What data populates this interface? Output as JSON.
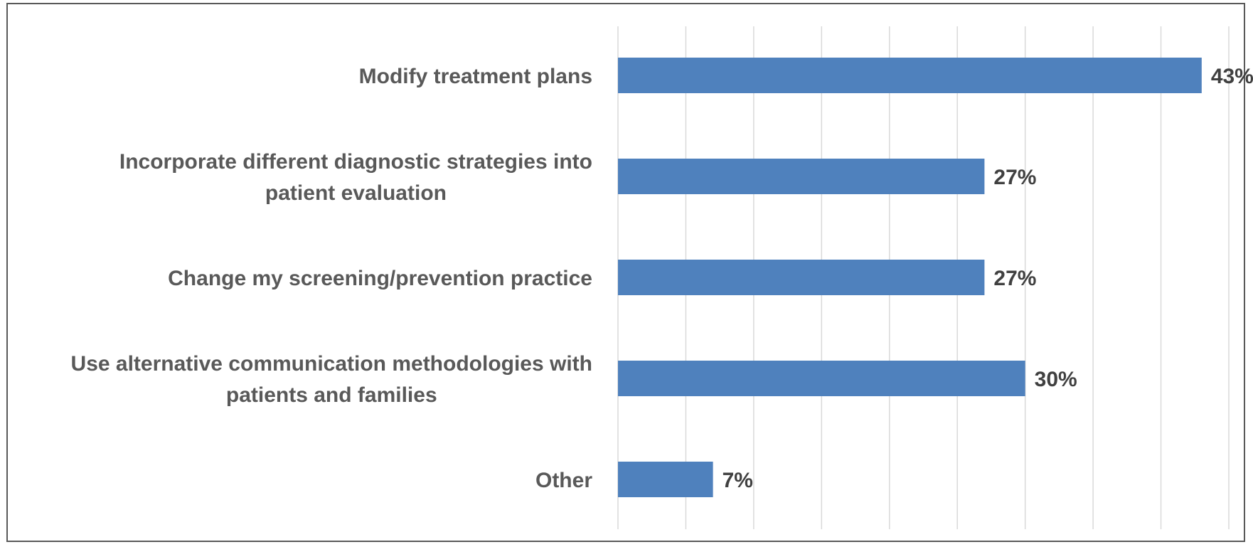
{
  "chart_data": {
    "type": "bar",
    "orientation": "horizontal",
    "categories": [
      "Modify treatment plans",
      "Incorporate different diagnostic strategies into patient evaluation",
      "Change my screening/prevention practice",
      "Use alternative communication methodologies with patients and families",
      "Other"
    ],
    "category_lines": [
      [
        "Modify treatment plans"
      ],
      [
        "Incorporate different diagnostic strategies into",
        "patient evaluation"
      ],
      [
        "Change my screening/prevention practice"
      ],
      [
        "Use alternative communication methodologies with",
        "patients and families"
      ],
      [
        "Other"
      ]
    ],
    "values": [
      43,
      27,
      27,
      30,
      7
    ],
    "value_labels": [
      "43%",
      "27%",
      "27%",
      "30%",
      "7%"
    ],
    "xlim": [
      0,
      45
    ],
    "grid": true,
    "gridline_step": 5,
    "bar_color": "#4F81BD",
    "title": "",
    "xlabel": "",
    "ylabel": ""
  }
}
